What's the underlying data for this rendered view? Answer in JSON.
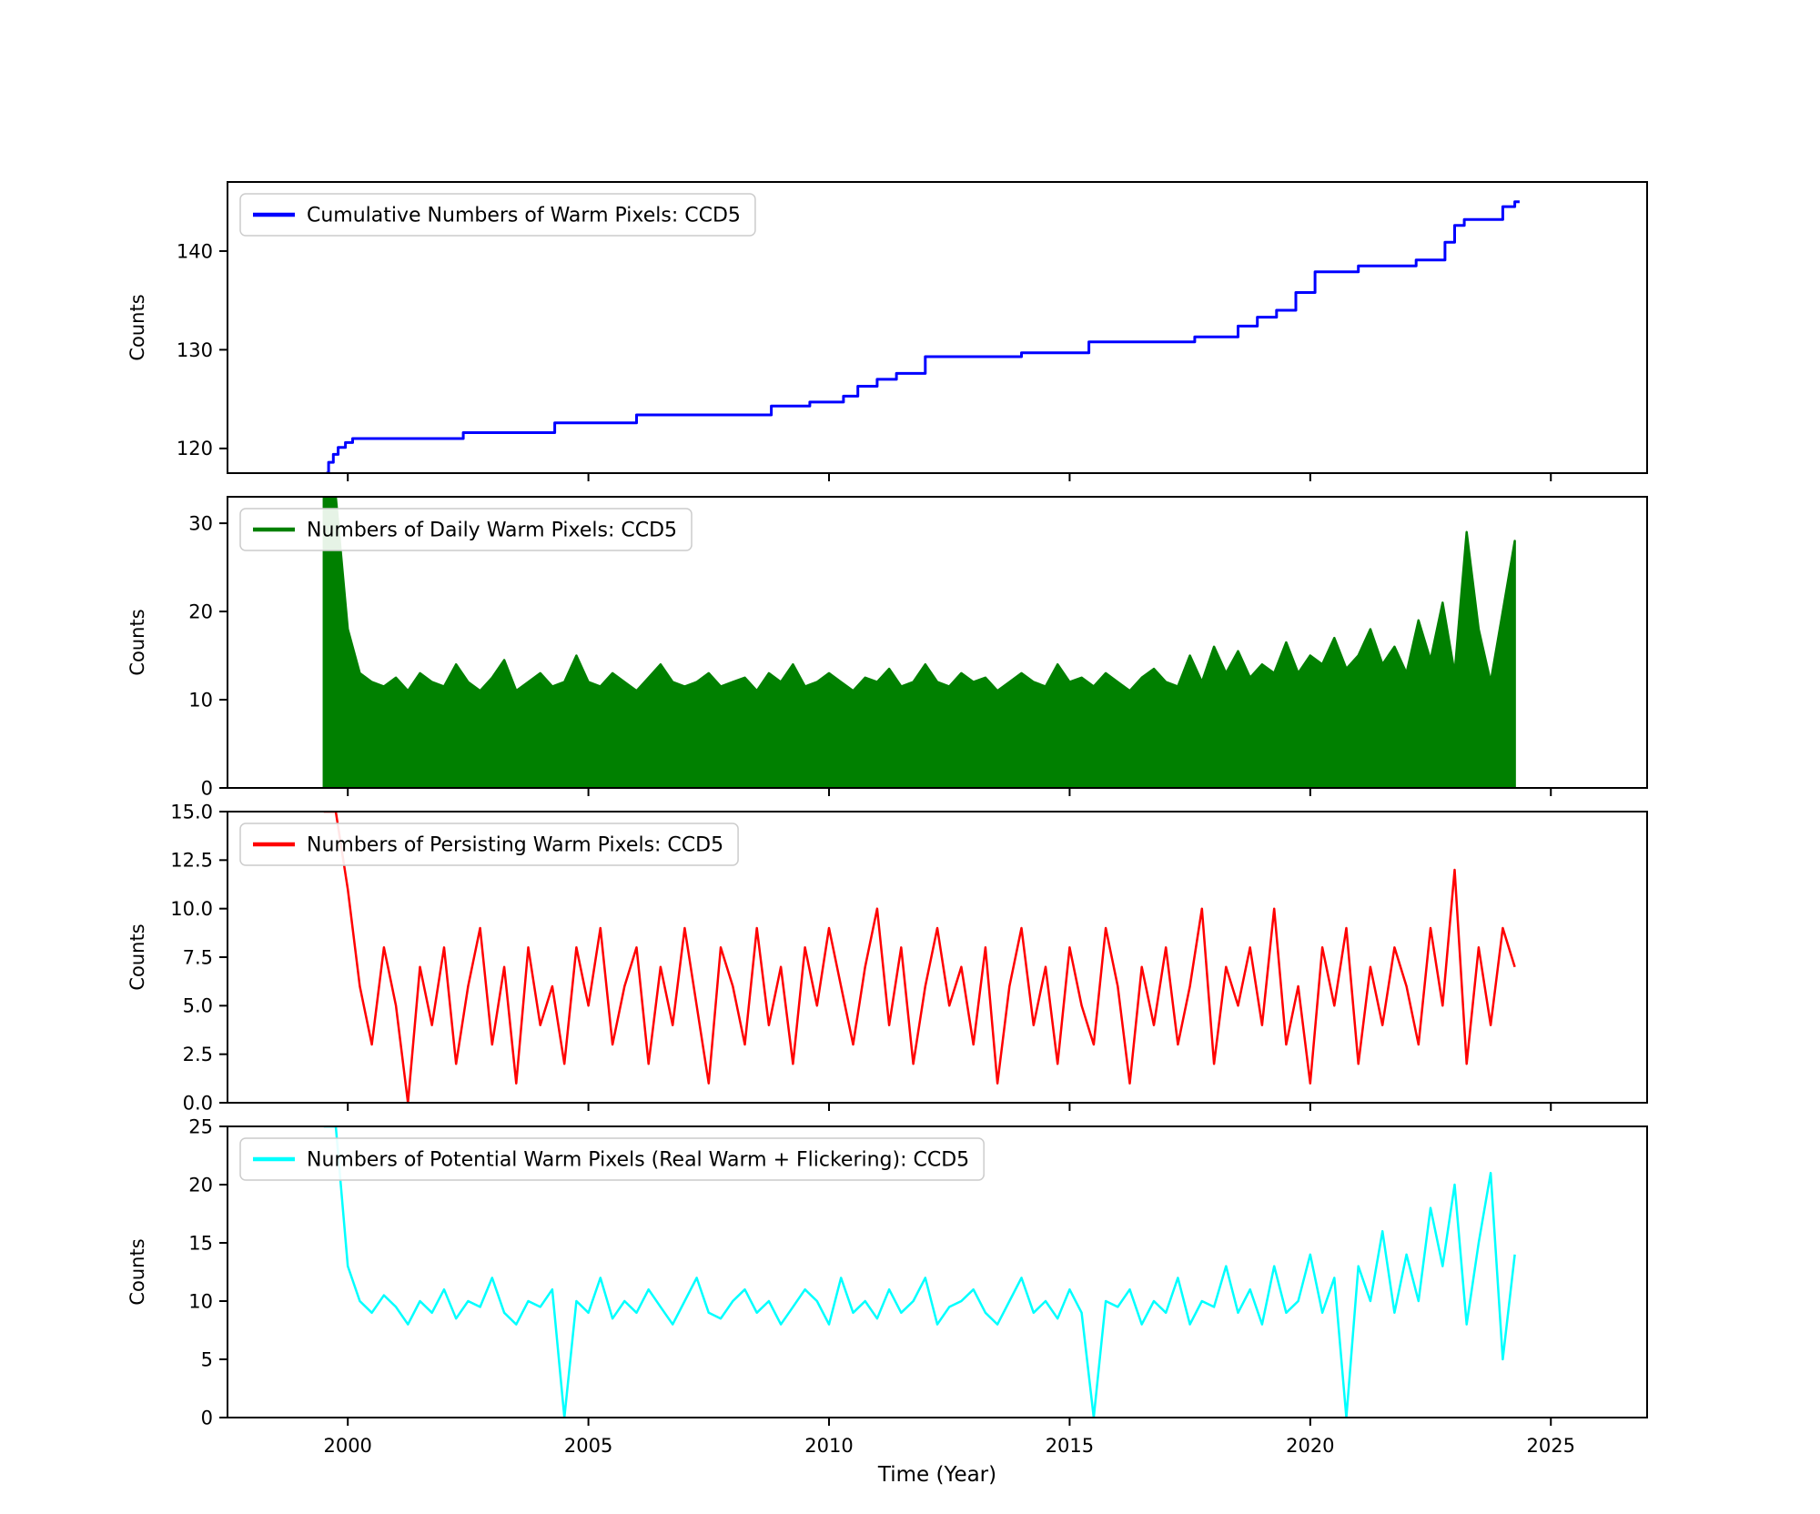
{
  "figure": {
    "background": "#ffffff"
  },
  "chart_meta": {
    "xlabel": "Time (Year)",
    "xlim": [
      1997.5,
      2027.0
    ],
    "xticks": [
      2000,
      2005,
      2010,
      2015,
      2020,
      2025
    ],
    "xtick_labels": [
      "2000",
      "2005",
      "2010",
      "2015",
      "2020",
      "2025"
    ],
    "grid": false,
    "legend_position": "upper left"
  },
  "chart_data": [
    {
      "type": "step",
      "label": "Cumulative Numbers of Warm Pixels: CCD5",
      "color": "#0000ff",
      "ylabel": "Counts",
      "ylim": [
        117.5,
        147.0
      ],
      "yticks": [
        120,
        130,
        140
      ],
      "ytick_labels": [
        "120",
        "130",
        "140"
      ],
      "x_end": 2024.35,
      "steps": [
        [
          1999.55,
          117.5
        ],
        [
          1999.6,
          118.6
        ],
        [
          1999.7,
          119.4
        ],
        [
          1999.8,
          120.1
        ],
        [
          1999.95,
          120.6
        ],
        [
          2000.1,
          121.0
        ],
        [
          2002.4,
          121.6
        ],
        [
          2004.3,
          122.6
        ],
        [
          2006.0,
          123.4
        ],
        [
          2008.8,
          124.3
        ],
        [
          2009.6,
          124.7
        ],
        [
          2010.3,
          125.3
        ],
        [
          2010.6,
          126.3
        ],
        [
          2011.0,
          127.0
        ],
        [
          2011.4,
          127.6
        ],
        [
          2012.0,
          129.3
        ],
        [
          2014.0,
          129.7
        ],
        [
          2015.4,
          130.8
        ],
        [
          2017.6,
          131.3
        ],
        [
          2018.5,
          132.4
        ],
        [
          2018.9,
          133.3
        ],
        [
          2019.3,
          134.0
        ],
        [
          2019.7,
          135.8
        ],
        [
          2020.1,
          137.9
        ],
        [
          2021.0,
          138.5
        ],
        [
          2022.2,
          139.1
        ],
        [
          2022.8,
          140.9
        ],
        [
          2023.0,
          142.6
        ],
        [
          2023.2,
          143.2
        ],
        [
          2024.0,
          144.5
        ],
        [
          2024.25,
          145.0
        ]
      ]
    },
    {
      "type": "area",
      "label": "Numbers of Daily Warm Pixels: CCD5",
      "color": "#008000",
      "ylabel": "Counts",
      "ylim": [
        0,
        33
      ],
      "yticks": [
        0,
        10,
        20,
        30
      ],
      "ytick_labels": [
        "0",
        "10",
        "20",
        "30"
      ],
      "x_start": 1999.5,
      "x_step": 0.25,
      "values": [
        33,
        33,
        18,
        13,
        12,
        11.5,
        12.5,
        11,
        13,
        12,
        11.5,
        14,
        12,
        11,
        12.5,
        14.5,
        11,
        12,
        13,
        11.5,
        12,
        15,
        12,
        11.5,
        13,
        12,
        11,
        12.5,
        14,
        12,
        11.5,
        12,
        13,
        11.5,
        12,
        12.5,
        11,
        13,
        12,
        14,
        11.5,
        12,
        13,
        12,
        11,
        12.5,
        12,
        13.5,
        11.5,
        12,
        14,
        12,
        11.5,
        13,
        12,
        12.5,
        11,
        12,
        13,
        12,
        11.5,
        14,
        12,
        12.5,
        11.5,
        13,
        12,
        11,
        12.5,
        13.5,
        12,
        11.5,
        15,
        12,
        16,
        13,
        15.5,
        12.5,
        14,
        13,
        16.5,
        13,
        15,
        14,
        17,
        13.5,
        15,
        18,
        14,
        16,
        13,
        19,
        14.5,
        21,
        13,
        29,
        18,
        12,
        20,
        28
      ]
    },
    {
      "type": "line",
      "label": "Numbers of Persisting Warm Pixels: CCD5",
      "color": "#ff0000",
      "ylabel": "Counts",
      "ylim": [
        0,
        15
      ],
      "yticks": [
        0,
        2.5,
        5,
        7.5,
        10,
        12.5,
        15
      ],
      "ytick_labels": [
        "0.0",
        "2.5",
        "5.0",
        "7.5",
        "10.0",
        "12.5",
        "15.0"
      ],
      "x_start": 1999.5,
      "x_step": 0.25,
      "values": [
        15,
        15,
        11,
        6,
        3,
        8,
        5,
        0,
        7,
        4,
        8,
        2,
        6,
        9,
        3,
        7,
        1,
        8,
        4,
        6,
        2,
        8,
        5,
        9,
        3,
        6,
        8,
        2,
        7,
        4,
        9,
        5,
        1,
        8,
        6,
        3,
        9,
        4,
        7,
        2,
        8,
        5,
        9,
        6,
        3,
        7,
        10,
        4,
        8,
        2,
        6,
        9,
        5,
        7,
        3,
        8,
        1,
        6,
        9,
        4,
        7,
        2,
        8,
        5,
        3,
        9,
        6,
        1,
        7,
        4,
        8,
        3,
        6,
        10,
        2,
        7,
        5,
        8,
        4,
        10,
        3,
        6,
        1,
        8,
        5,
        9,
        2,
        7,
        4,
        8,
        6,
        3,
        9,
        5,
        12,
        2,
        8,
        4,
        9,
        7
      ]
    },
    {
      "type": "line",
      "label": "Numbers of Potential Warm Pixels (Real Warm + Flickering): CCD5",
      "color": "#00ffff",
      "ylabel": "Counts",
      "ylim": [
        0,
        25
      ],
      "yticks": [
        0,
        5,
        10,
        15,
        20,
        25
      ],
      "ytick_labels": [
        "0",
        "5",
        "10",
        "15",
        "20",
        "25"
      ],
      "x_start": 1999.5,
      "x_step": 0.25,
      "values": [
        25,
        25,
        13,
        10,
        9,
        10.5,
        9.5,
        8,
        10,
        9,
        11,
        8.5,
        10,
        9.5,
        12,
        9,
        8,
        10,
        9.5,
        11,
        0,
        10,
        9,
        12,
        8.5,
        10,
        9,
        11,
        9.5,
        8,
        10,
        12,
        9,
        8.5,
        10,
        11,
        9,
        10,
        8,
        9.5,
        11,
        10,
        8,
        12,
        9,
        10,
        8.5,
        11,
        9,
        10,
        12,
        8,
        9.5,
        10,
        11,
        9,
        8,
        10,
        12,
        9,
        10,
        8.5,
        11,
        9,
        0,
        10,
        9.5,
        11,
        8,
        10,
        9,
        12,
        8,
        10,
        9.5,
        13,
        9,
        11,
        8,
        13,
        9,
        10,
        14,
        9,
        12,
        0,
        13,
        10,
        16,
        9,
        14,
        10,
        18,
        13,
        20,
        8,
        15,
        21,
        5,
        14
      ]
    }
  ]
}
